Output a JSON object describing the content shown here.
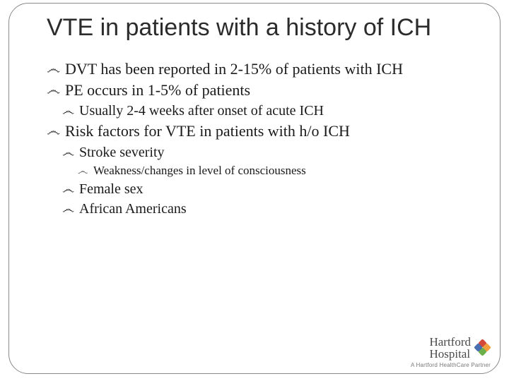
{
  "title": "VTE in patients with a history of ICH",
  "bullet_char": "෴",
  "text_color": "#1a1a1a",
  "title_color": "#2b2b2b",
  "background_color": "#ffffff",
  "frame_border_color": "#8a8a8a",
  "font_sizes": {
    "title": 34,
    "lvl1": 22,
    "lvl2": 20,
    "lvl3": 17
  },
  "bullets": [
    {
      "level": 1,
      "text": "DVT has been reported in 2-15% of patients with ICH"
    },
    {
      "level": 1,
      "text": "PE occurs in 1-5% of patients"
    },
    {
      "level": 2,
      "text": "Usually 2-4 weeks after onset of acute ICH"
    },
    {
      "level": 1,
      "text": "Risk factors for VTE in patients with h/o ICH"
    },
    {
      "level": 2,
      "text": "Stroke severity"
    },
    {
      "level": 3,
      "text": "Weakness/changes in level of consciousness"
    },
    {
      "level": 2,
      "text": "Female sex"
    },
    {
      "level": 2,
      "text": "African Americans"
    }
  ],
  "logo": {
    "line1": "Hartford",
    "line2": "Hospital",
    "tagline": "A Hartford HealthCare Partner",
    "text_color": "#4a4a4a",
    "tagline_color": "#7a7a7a",
    "petal_colors": [
      "#d4483a",
      "#f2a03d",
      "#6bb04a",
      "#4a6fb0"
    ]
  }
}
